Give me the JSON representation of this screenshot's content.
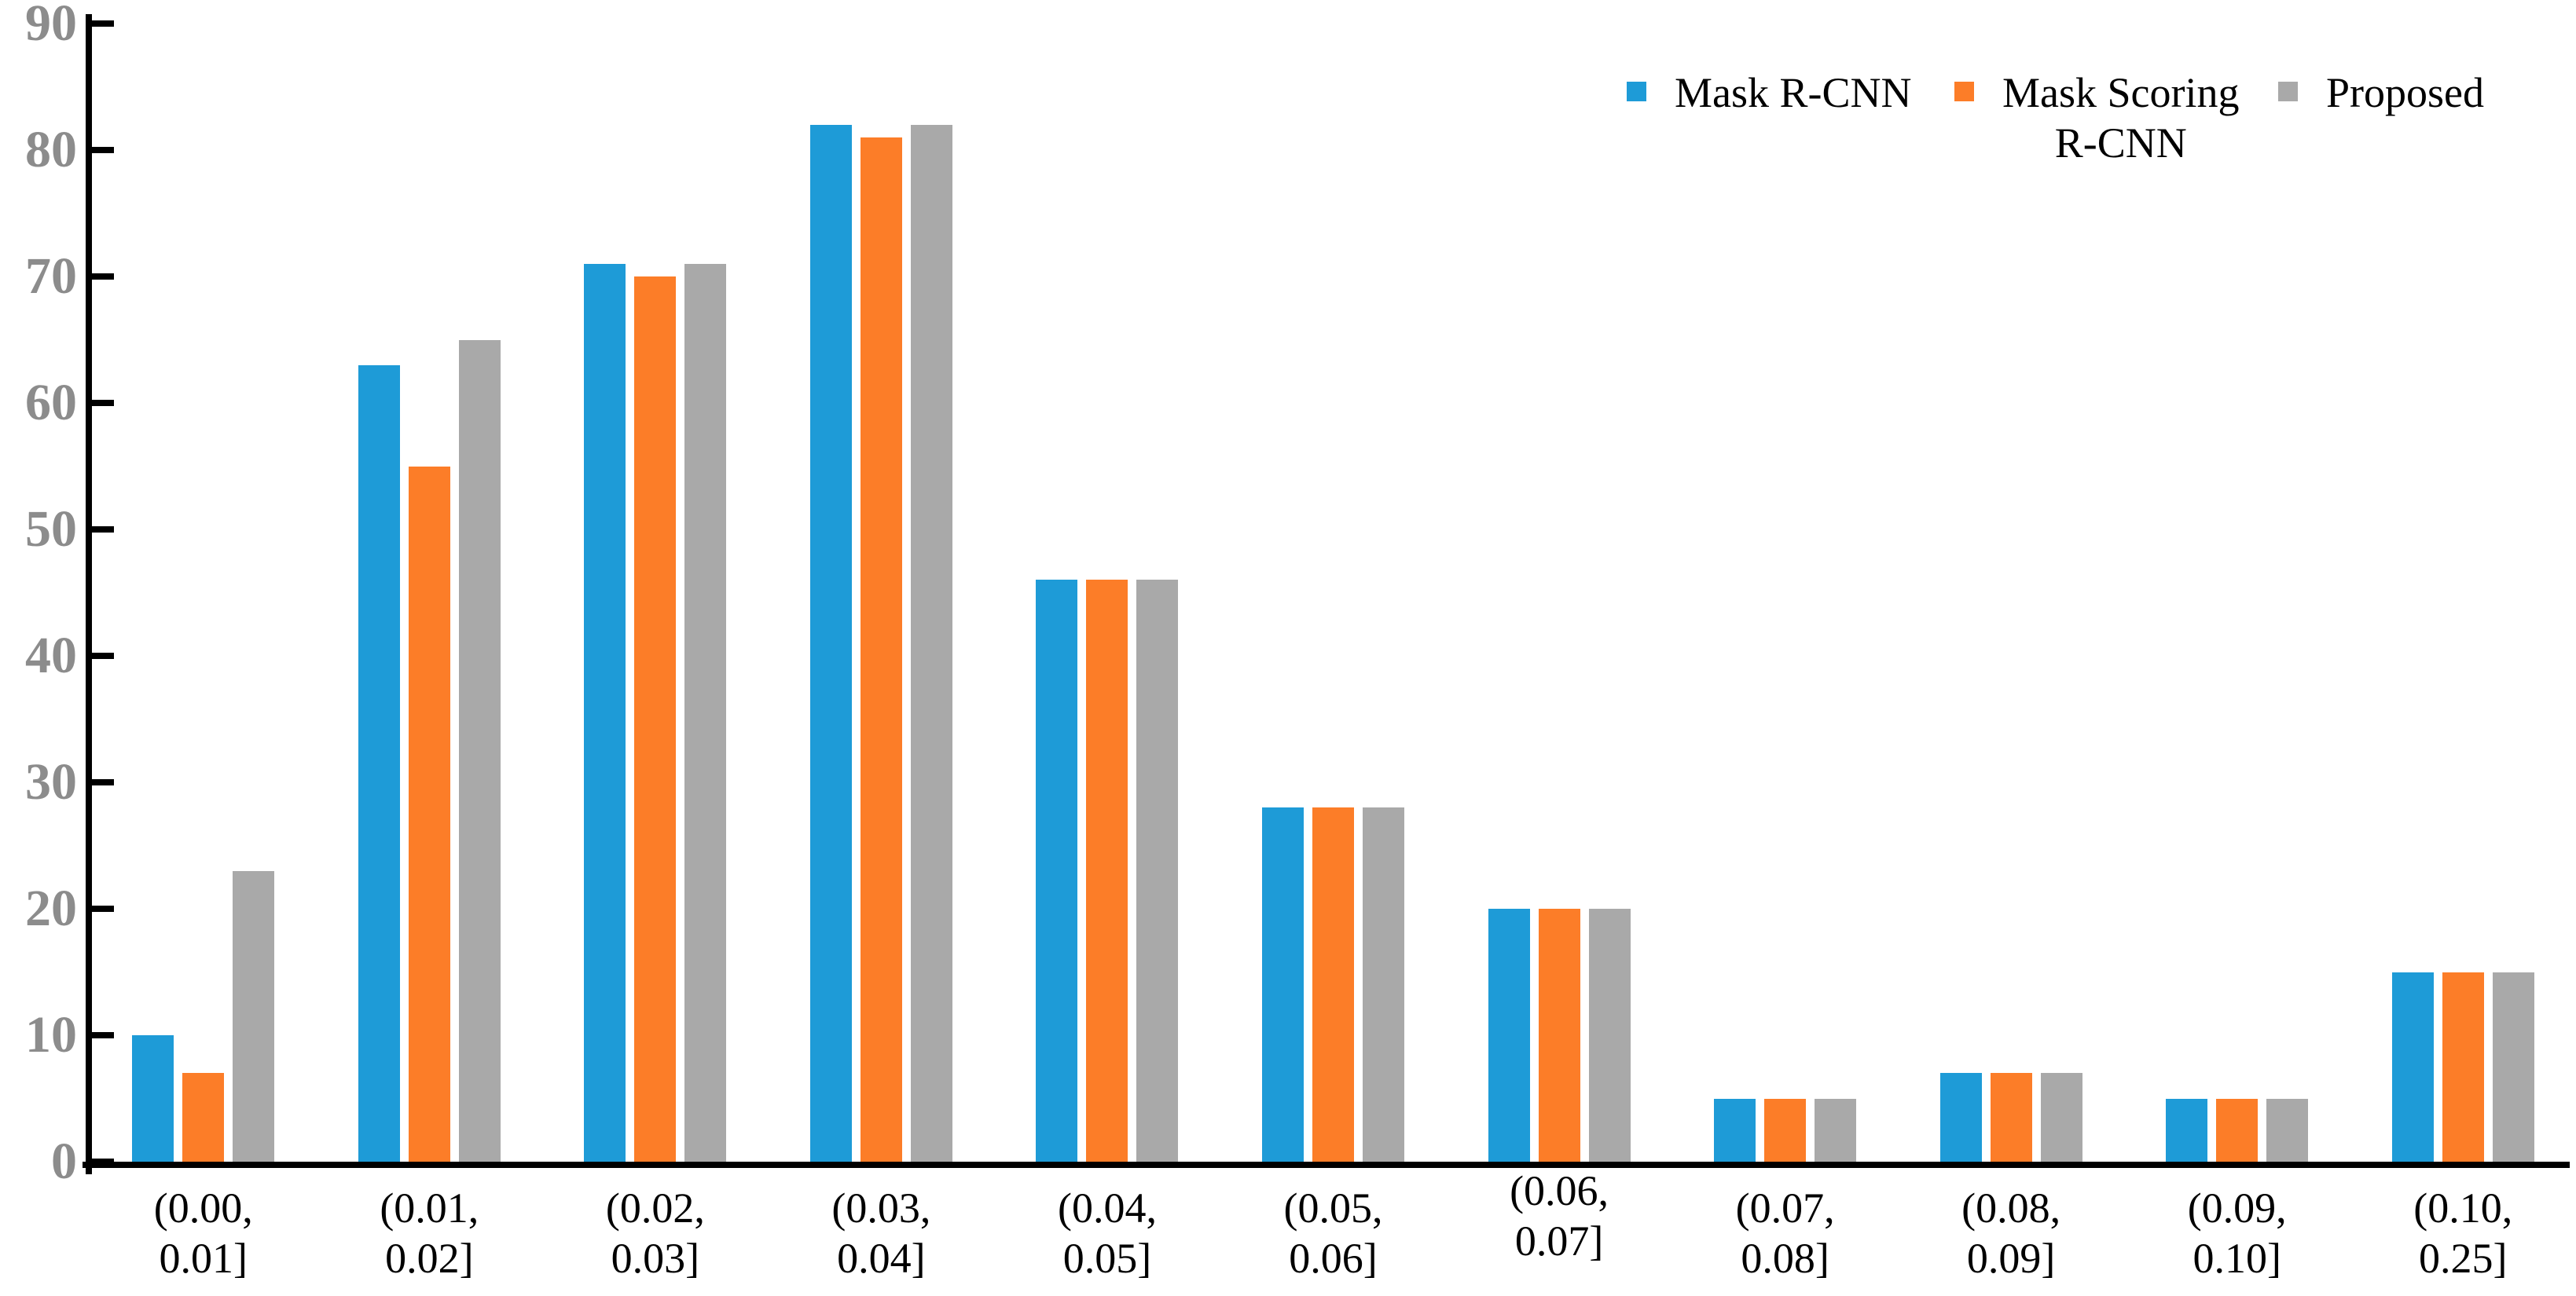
{
  "chart_data": {
    "type": "bar",
    "title": "",
    "xlabel": "",
    "ylabel": "",
    "grid": false,
    "legend_position": "top-right",
    "y_axis": {
      "min": 0,
      "max": 90,
      "tick_step": 10,
      "tick_labels": [
        "0",
        "10",
        "20",
        "30",
        "40",
        "50",
        "60",
        "70",
        "80",
        "90"
      ],
      "label_color": "#8C8C8C",
      "axis_color": "#000000"
    },
    "categories": [
      {
        "line1": "(0.00,",
        "line2": "0.01]",
        "raised": false
      },
      {
        "line1": "(0.01,",
        "line2": "0.02]",
        "raised": false
      },
      {
        "line1": "(0.02,",
        "line2": "0.03]",
        "raised": false
      },
      {
        "line1": "(0.03,",
        "line2": "0.04]",
        "raised": false
      },
      {
        "line1": "(0.04,",
        "line2": "0.05]",
        "raised": false
      },
      {
        "line1": "(0.05,",
        "line2": "0.06]",
        "raised": false
      },
      {
        "line1": "(0.06,",
        "line2": "0.07]",
        "raised": true
      },
      {
        "line1": "(0.07,",
        "line2": "0.08]",
        "raised": false
      },
      {
        "line1": "(0.08,",
        "line2": "0.09]",
        "raised": false
      },
      {
        "line1": "(0.09,",
        "line2": "0.10]",
        "raised": false
      },
      {
        "line1": "(0.10,",
        "line2": "0.25]",
        "raised": false
      }
    ],
    "series": [
      {
        "name": "Mask R-CNN",
        "legend_lines": [
          "Mask R-CNN"
        ],
        "color": "#1E9BD7",
        "values": [
          10,
          63,
          71,
          82,
          46,
          28,
          20,
          5,
          7,
          5,
          15
        ]
      },
      {
        "name": "Mask Scoring R-CNN",
        "legend_lines": [
          "Mask Scoring",
          "R-CNN"
        ],
        "color": "#FC7D28",
        "values": [
          7,
          55,
          70,
          81,
          46,
          28,
          20,
          5,
          7,
          5,
          15
        ]
      },
      {
        "name": "Proposed",
        "legend_lines": [
          "Proposed"
        ],
        "color": "#A9A9A9",
        "values": [
          23,
          65,
          71,
          82,
          46,
          28,
          20,
          5,
          7,
          5,
          15
        ]
      }
    ]
  }
}
